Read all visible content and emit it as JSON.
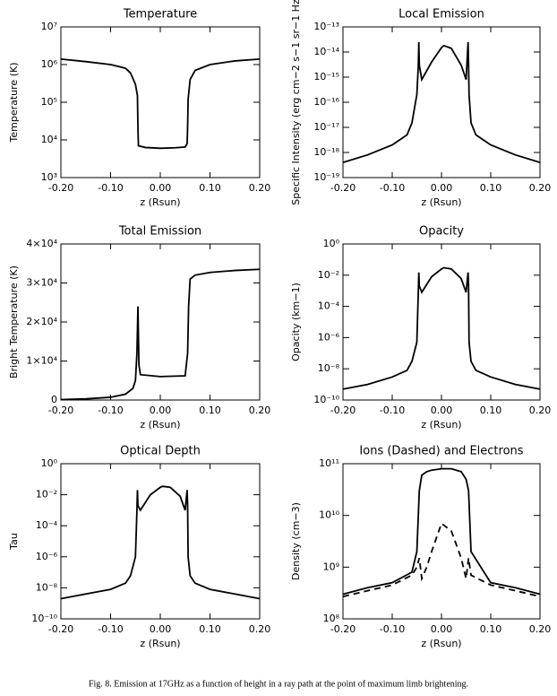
{
  "chart_data": [
    {
      "type": "line",
      "title": "Temperature",
      "xlabel": "z (Rsun)",
      "ylabel": "Temperature (K)",
      "ylog": true,
      "xlim": [
        -0.2,
        0.2
      ],
      "xticks": [
        {
          "value": -0.2,
          "label": "-0.20"
        },
        {
          "value": -0.1,
          "label": "-0.10"
        },
        {
          "value": 0,
          "label": "0.00"
        },
        {
          "value": 0.1,
          "label": "0.10"
        },
        {
          "value": 0.2,
          "label": "0.20"
        }
      ],
      "ylim": [
        1000,
        10000000
      ],
      "yticks": [
        {
          "value": 1000,
          "label": "10³"
        },
        {
          "value": 10000,
          "label": "10⁴"
        },
        {
          "value": 100000,
          "label": "10⁵"
        },
        {
          "value": 1000000,
          "label": "10⁶"
        },
        {
          "value": 10000000,
          "label": "10⁷"
        }
      ],
      "x": [
        -0.2,
        -0.15,
        -0.1,
        -0.07,
        -0.06,
        -0.05,
        -0.046,
        -0.045,
        -0.044,
        -0.03,
        0,
        0.03,
        0.05,
        0.054,
        0.055,
        0.056,
        0.06,
        0.07,
        0.1,
        0.15,
        0.2
      ],
      "series": [
        {
          "color": "#000000",
          "style": "solid",
          "values": [
            1400000,
            1200000,
            1000000,
            800000,
            600000,
            300000,
            150000,
            22000,
            7000,
            6300,
            6000,
            6200,
            6500,
            8000,
            22000,
            120000,
            400000,
            700000,
            1000000,
            1250000,
            1400000
          ]
        }
      ]
    },
    {
      "type": "line",
      "title": "Local Emission",
      "xlabel": "z (Rsun)",
      "ylabel": "Specific Intensity (erg cm−2 s−1 sr−1 Hz",
      "ylog": true,
      "xlim": [
        -0.2,
        0.2
      ],
      "xticks": [
        {
          "value": -0.2,
          "label": "-0.20"
        },
        {
          "value": -0.1,
          "label": "-0.10"
        },
        {
          "value": 0,
          "label": "0.00"
        },
        {
          "value": 0.1,
          "label": "0.10"
        },
        {
          "value": 0.2,
          "label": "0.20"
        }
      ],
      "ylim": [
        1e-19,
        1e-13
      ],
      "yticks": [
        {
          "value": 1e-19,
          "label": "10⁻¹⁹"
        },
        {
          "value": 1e-18,
          "label": "10⁻¹⁸"
        },
        {
          "value": 1e-17,
          "label": "10⁻¹⁷"
        },
        {
          "value": 1e-16,
          "label": "10⁻¹⁶"
        },
        {
          "value": 1e-15,
          "label": "10⁻¹⁵"
        },
        {
          "value": 1e-14,
          "label": "10⁻¹⁴"
        },
        {
          "value": 1e-13,
          "label": "10⁻¹³"
        }
      ],
      "x": [
        -0.2,
        -0.15,
        -0.1,
        -0.07,
        -0.06,
        -0.05,
        -0.047,
        -0.046,
        -0.045,
        -0.04,
        -0.02,
        0,
        0.005,
        0.02,
        0.04,
        0.05,
        0.054,
        0.055,
        0.056,
        0.06,
        0.07,
        0.1,
        0.15,
        0.2
      ],
      "series": [
        {
          "color": "#000000",
          "style": "solid",
          "values": [
            4e-19,
            8e-19,
            2e-18,
            5e-18,
            1.5e-17,
            2e-16,
            3e-15,
            2.5e-14,
            3e-15,
            8e-16,
            4e-15,
            1.5e-14,
            1.8e-14,
            1.4e-14,
            3e-15,
            8e-16,
            2.5e-14,
            3e-15,
            2e-16,
            1.5e-17,
            5e-18,
            2e-18,
            8e-19,
            4e-19
          ]
        }
      ]
    },
    {
      "type": "line",
      "title": "Total Emission",
      "xlabel": "z (Rsun)",
      "ylabel": "Bright Temperature (K)",
      "ylog": false,
      "xlim": [
        -0.2,
        0.2
      ],
      "xticks": [
        {
          "value": -0.2,
          "label": "-0.20"
        },
        {
          "value": -0.1,
          "label": "-0.10"
        },
        {
          "value": 0,
          "label": "0.00"
        },
        {
          "value": 0.1,
          "label": "0.10"
        },
        {
          "value": 0.2,
          "label": "0.20"
        }
      ],
      "ylim": [
        0,
        40000
      ],
      "yticks": [
        0,
        {
          "value": 10000,
          "label": "1×10⁴"
        },
        {
          "value": 20000,
          "label": "2×10⁴"
        },
        {
          "value": 30000,
          "label": "3×10⁴"
        },
        {
          "value": 40000,
          "label": "4×10⁴"
        }
      ],
      "x": [
        -0.2,
        -0.15,
        -0.1,
        -0.07,
        -0.055,
        -0.05,
        -0.047,
        -0.045,
        -0.043,
        -0.04,
        0,
        0.05,
        0.055,
        0.057,
        0.06,
        0.07,
        0.1,
        0.15,
        0.2
      ],
      "series": [
        {
          "color": "#000000",
          "style": "solid",
          "values": [
            100,
            300,
            700,
            1500,
            3000,
            5000,
            12000,
            24000,
            9000,
            6500,
            6000,
            6200,
            12000,
            24000,
            31000,
            32000,
            32700,
            33200,
            33500
          ]
        }
      ]
    },
    {
      "type": "line",
      "title": "Opacity",
      "xlabel": "z (Rsun)",
      "ylabel": "Opacity (km−1)",
      "ylog": true,
      "xlim": [
        -0.2,
        0.2
      ],
      "xticks": [
        {
          "value": -0.2,
          "label": "-0.20"
        },
        {
          "value": -0.1,
          "label": "-0.10"
        },
        {
          "value": 0,
          "label": "0.00"
        },
        {
          "value": 0.1,
          "label": "0.10"
        },
        {
          "value": 0.2,
          "label": "0.20"
        }
      ],
      "ylim": [
        1e-10,
        1
      ],
      "yticks": [
        {
          "value": 1e-10,
          "label": "10⁻¹⁰"
        },
        {
          "value": 1e-08,
          "label": "10⁻⁸"
        },
        {
          "value": 1e-06,
          "label": "10⁻⁶"
        },
        {
          "value": 0.0001,
          "label": "10⁻⁴"
        },
        {
          "value": 0.01,
          "label": "10⁻²"
        },
        {
          "value": 1,
          "label": "10⁰"
        }
      ],
      "x": [
        -0.2,
        -0.15,
        -0.1,
        -0.07,
        -0.06,
        -0.05,
        -0.047,
        -0.046,
        -0.045,
        -0.04,
        -0.02,
        0,
        0.005,
        0.02,
        0.04,
        0.05,
        0.054,
        0.055,
        0.056,
        0.06,
        0.07,
        0.1,
        0.15,
        0.2
      ],
      "series": [
        {
          "color": "#000000",
          "style": "solid",
          "values": [
            5e-10,
            1e-09,
            3e-09,
            8e-09,
            3e-08,
            5e-07,
            0.001,
            0.015,
            0.002,
            0.0008,
            0.008,
            0.025,
            0.03,
            0.025,
            0.006,
            0.0008,
            0.015,
            0.002,
            5e-07,
            3e-08,
            8e-09,
            3e-09,
            1e-09,
            5e-10
          ]
        }
      ]
    },
    {
      "type": "line",
      "title": "Optical Depth",
      "xlabel": "z (Rsun)",
      "ylabel": "Tau",
      "ylog": true,
      "xlim": [
        -0.2,
        0.2
      ],
      "xticks": [
        {
          "value": -0.2,
          "label": "-0.20"
        },
        {
          "value": -0.1,
          "label": "-0.10"
        },
        {
          "value": 0,
          "label": "0.00"
        },
        {
          "value": 0.1,
          "label": "0.10"
        },
        {
          "value": 0.2,
          "label": "0.20"
        }
      ],
      "ylim": [
        1e-10,
        1
      ],
      "yticks": [
        {
          "value": 1e-10,
          "label": "10⁻¹⁰"
        },
        {
          "value": 1e-08,
          "label": "10⁻⁸"
        },
        {
          "value": 1e-06,
          "label": "10⁻⁶"
        },
        {
          "value": 0.0001,
          "label": "10⁻⁴"
        },
        {
          "value": 0.01,
          "label": "10⁻²"
        },
        {
          "value": 1,
          "label": "10⁰"
        }
      ],
      "x": [
        -0.2,
        -0.15,
        -0.1,
        -0.07,
        -0.06,
        -0.05,
        -0.047,
        -0.046,
        -0.045,
        -0.04,
        -0.02,
        0,
        0.005,
        0.02,
        0.04,
        0.05,
        0.054,
        0.055,
        0.056,
        0.06,
        0.07,
        0.1,
        0.15,
        0.2
      ],
      "series": [
        {
          "color": "#000000",
          "style": "solid",
          "values": [
            2e-09,
            4e-09,
            8e-09,
            2e-08,
            6e-08,
            1e-06,
            0.001,
            0.02,
            0.002,
            0.001,
            0.01,
            0.03,
            0.035,
            0.03,
            0.008,
            0.001,
            0.02,
            0.002,
            1e-06,
            6e-08,
            2e-08,
            8e-09,
            4e-09,
            2e-09
          ]
        }
      ]
    },
    {
      "type": "line",
      "title": "Ions (Dashed) and Electrons",
      "xlabel": "z (Rsun)",
      "ylabel": "Density (cm−3)",
      "ylog": true,
      "xlim": [
        -0.2,
        0.2
      ],
      "xticks": [
        {
          "value": -0.2,
          "label": "-0.20"
        },
        {
          "value": -0.1,
          "label": "-0.10"
        },
        {
          "value": 0,
          "label": "0.00"
        },
        {
          "value": 0.1,
          "label": "0.10"
        },
        {
          "value": 0.2,
          "label": "0.20"
        }
      ],
      "ylim": [
        100000000,
        100000000000
      ],
      "yticks": [
        {
          "value": 100000000,
          "label": "10⁸"
        },
        {
          "value": 1000000000,
          "label": "10⁹"
        },
        {
          "value": 10000000000,
          "label": "10¹⁰"
        },
        {
          "value": 100000000000,
          "label": "10¹¹"
        }
      ],
      "x": [
        -0.2,
        -0.15,
        -0.1,
        -0.06,
        -0.05,
        -0.045,
        -0.04,
        -0.03,
        -0.02,
        0,
        0.02,
        0.04,
        0.05,
        0.055,
        0.06,
        0.1,
        0.15,
        0.2
      ],
      "series": [
        {
          "color": "#000000",
          "style": "solid",
          "values": [
            300000000.0,
            400000000.0,
            500000000.0,
            800000000.0,
            2000000000.0,
            30000000000.0,
            60000000000.0,
            70000000000.0,
            75000000000.0,
            80000000000.0,
            80000000000.0,
            70000000000.0,
            50000000000.0,
            30000000000.0,
            2000000000.0,
            500000000.0,
            400000000.0,
            300000000.0
          ]
        },
        {
          "color": "#000000",
          "style": "dashed",
          "values": [
            270000000.0,
            350000000.0,
            450000000.0,
            700000000.0,
            1000000000.0,
            1500000000.0,
            600000000.0,
            1000000000.0,
            2000000000.0,
            7000000000.0,
            5000000000.0,
            1500000000.0,
            600000000.0,
            1500000000.0,
            700000000.0,
            450000000.0,
            350000000.0,
            270000000.0
          ]
        }
      ]
    }
  ],
  "caption": "Fig. 8. Emission at 17GHz as a function of height in a ray path at the point of maximum limb brightening."
}
